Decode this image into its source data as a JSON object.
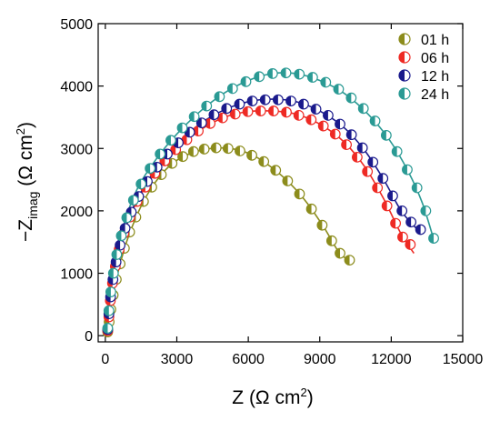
{
  "chart_data": {
    "type": "scatter",
    "title": "",
    "xlabel_parts": {
      "main": "Z (Ω cm",
      "sup": "2",
      "end": ")"
    },
    "ylabel_parts": {
      "pre": "−Z",
      "sub": "imag",
      "main": " (Ω cm",
      "sup": "2",
      "end": ")"
    },
    "xlim": [
      -300,
      15000
    ],
    "ylim": [
      -100,
      5000
    ],
    "xticks": [
      0,
      3000,
      6000,
      9000,
      12000,
      15000
    ],
    "yticks": [
      0,
      1000,
      2000,
      3000,
      4000,
      5000
    ],
    "xtick_labels": [
      "0",
      "3000",
      "6000",
      "9000",
      "12000",
      "15000"
    ],
    "ytick_labels": [
      "0",
      "1000",
      "2000",
      "3000",
      "4000",
      "5000"
    ],
    "grid": false,
    "legend_position": "top-right",
    "series": [
      {
        "name": "01 h",
        "color": "#8c8c1c",
        "points": [
          [
            100,
            60
          ],
          [
            160,
            220
          ],
          [
            230,
            420
          ],
          [
            330,
            650
          ],
          [
            460,
            900
          ],
          [
            620,
            1150
          ],
          [
            800,
            1400
          ],
          [
            1020,
            1660
          ],
          [
            1280,
            1900
          ],
          [
            1600,
            2150
          ],
          [
            1950,
            2380
          ],
          [
            2350,
            2580
          ],
          [
            2800,
            2760
          ],
          [
            3250,
            2870
          ],
          [
            3700,
            2950
          ],
          [
            4150,
            2990
          ],
          [
            4650,
            3010
          ],
          [
            5150,
            3000
          ],
          [
            5650,
            2960
          ],
          [
            6150,
            2890
          ],
          [
            6650,
            2790
          ],
          [
            7150,
            2650
          ],
          [
            7650,
            2480
          ],
          [
            8150,
            2270
          ],
          [
            8650,
            2030
          ],
          [
            9100,
            1770
          ],
          [
            9500,
            1520
          ],
          [
            9850,
            1320
          ],
          [
            10250,
            1210
          ]
        ],
        "fit": [
          [
            100,
            60
          ],
          [
            300,
            600
          ],
          [
            600,
            1120
          ],
          [
            1000,
            1620
          ],
          [
            1600,
            2150
          ],
          [
            2300,
            2560
          ],
          [
            3000,
            2810
          ],
          [
            3800,
            2950
          ],
          [
            4600,
            3005
          ],
          [
            5400,
            2990
          ],
          [
            6200,
            2890
          ],
          [
            7000,
            2690
          ],
          [
            7800,
            2420
          ],
          [
            8500,
            2110
          ],
          [
            9200,
            1720
          ],
          [
            9800,
            1340
          ],
          [
            10250,
            1200
          ]
        ]
      },
      {
        "name": "06 h",
        "color": "#ee2a24",
        "points": [
          [
            100,
            80
          ],
          [
            150,
            300
          ],
          [
            210,
            560
          ],
          [
            300,
            840
          ],
          [
            420,
            1110
          ],
          [
            580,
            1380
          ],
          [
            780,
            1640
          ],
          [
            1030,
            1900
          ],
          [
            1330,
            2150
          ],
          [
            1680,
            2380
          ],
          [
            2080,
            2600
          ],
          [
            2500,
            2800
          ],
          [
            2950,
            2980
          ],
          [
            3420,
            3140
          ],
          [
            3900,
            3280
          ],
          [
            4400,
            3400
          ],
          [
            4920,
            3490
          ],
          [
            5450,
            3550
          ],
          [
            5980,
            3590
          ],
          [
            6520,
            3600
          ],
          [
            7060,
            3600
          ],
          [
            7600,
            3580
          ],
          [
            8120,
            3530
          ],
          [
            8640,
            3460
          ],
          [
            9150,
            3360
          ],
          [
            9650,
            3230
          ],
          [
            10120,
            3060
          ],
          [
            10570,
            2860
          ],
          [
            11000,
            2630
          ],
          [
            11420,
            2370
          ],
          [
            11820,
            2080
          ],
          [
            12180,
            1800
          ],
          [
            12480,
            1580
          ],
          [
            12800,
            1460
          ]
        ],
        "fit": [
          [
            100,
            80
          ],
          [
            300,
            840
          ],
          [
            700,
            1540
          ],
          [
            1300,
            2130
          ],
          [
            2100,
            2610
          ],
          [
            3000,
            2990
          ],
          [
            4000,
            3300
          ],
          [
            5000,
            3500
          ],
          [
            6000,
            3590
          ],
          [
            7000,
            3600
          ],
          [
            8000,
            3550
          ],
          [
            9000,
            3390
          ],
          [
            10000,
            3110
          ],
          [
            10900,
            2700
          ],
          [
            11700,
            2180
          ],
          [
            12400,
            1640
          ],
          [
            12950,
            1320
          ]
        ]
      },
      {
        "name": "12 h",
        "color": "#1a1a8c",
        "points": [
          [
            100,
            100
          ],
          [
            150,
            350
          ],
          [
            220,
            620
          ],
          [
            320,
            900
          ],
          [
            450,
            1180
          ],
          [
            620,
            1450
          ],
          [
            830,
            1720
          ],
          [
            1090,
            1980
          ],
          [
            1400,
            2230
          ],
          [
            1760,
            2470
          ],
          [
            2170,
            2700
          ],
          [
            2600,
            2910
          ],
          [
            3060,
            3090
          ],
          [
            3540,
            3260
          ],
          [
            4040,
            3410
          ],
          [
            4560,
            3540
          ],
          [
            5090,
            3640
          ],
          [
            5630,
            3710
          ],
          [
            6170,
            3760
          ],
          [
            6710,
            3780
          ],
          [
            7250,
            3780
          ],
          [
            7790,
            3760
          ],
          [
            8320,
            3710
          ],
          [
            8840,
            3630
          ],
          [
            9350,
            3530
          ],
          [
            9850,
            3390
          ],
          [
            10330,
            3220
          ],
          [
            10790,
            3010
          ],
          [
            11230,
            2780
          ],
          [
            11650,
            2520
          ],
          [
            12060,
            2240
          ],
          [
            12450,
            2000
          ],
          [
            12830,
            1820
          ],
          [
            13230,
            1700
          ]
        ],
        "fit": [
          [
            100,
            100
          ],
          [
            300,
            880
          ],
          [
            700,
            1560
          ],
          [
            1300,
            2160
          ],
          [
            2100,
            2660
          ],
          [
            3000,
            3070
          ],
          [
            4000,
            3400
          ],
          [
            5000,
            3620
          ],
          [
            6000,
            3750
          ],
          [
            7000,
            3790
          ],
          [
            8000,
            3750
          ],
          [
            9000,
            3600
          ],
          [
            10000,
            3340
          ],
          [
            10900,
            2960
          ],
          [
            11700,
            2490
          ],
          [
            12400,
            2010
          ],
          [
            13000,
            1740
          ],
          [
            13300,
            1640
          ]
        ]
      },
      {
        "name": "24 h",
        "color": "#2a9a94",
        "points": [
          [
            100,
            120
          ],
          [
            150,
            400
          ],
          [
            230,
            700
          ],
          [
            340,
            1000
          ],
          [
            480,
            1300
          ],
          [
            670,
            1600
          ],
          [
            900,
            1890
          ],
          [
            1180,
            2170
          ],
          [
            1500,
            2430
          ],
          [
            1880,
            2680
          ],
          [
            2300,
            2910
          ],
          [
            2750,
            3130
          ],
          [
            3230,
            3330
          ],
          [
            3730,
            3510
          ],
          [
            4250,
            3680
          ],
          [
            4790,
            3830
          ],
          [
            5340,
            3960
          ],
          [
            5900,
            4070
          ],
          [
            6460,
            4150
          ],
          [
            7020,
            4200
          ],
          [
            7580,
            4210
          ],
          [
            8140,
            4190
          ],
          [
            8700,
            4140
          ],
          [
            9250,
            4060
          ],
          [
            9790,
            3950
          ],
          [
            10320,
            3810
          ],
          [
            10830,
            3640
          ],
          [
            11320,
            3440
          ],
          [
            11790,
            3210
          ],
          [
            12240,
            2950
          ],
          [
            12670,
            2660
          ],
          [
            13080,
            2370
          ],
          [
            13450,
            2000
          ],
          [
            13780,
            1560
          ]
        ],
        "fit": [
          [
            100,
            120
          ],
          [
            300,
            960
          ],
          [
            700,
            1680
          ],
          [
            1300,
            2320
          ],
          [
            2100,
            2810
          ],
          [
            3000,
            3230
          ],
          [
            4000,
            3600
          ],
          [
            5000,
            3890
          ],
          [
            6000,
            4090
          ],
          [
            7000,
            4200
          ],
          [
            8000,
            4200
          ],
          [
            9000,
            4090
          ],
          [
            10000,
            3890
          ],
          [
            11000,
            3560
          ],
          [
            11900,
            3150
          ],
          [
            12700,
            2640
          ],
          [
            13300,
            2130
          ],
          [
            13800,
            1520
          ]
        ]
      }
    ]
  }
}
